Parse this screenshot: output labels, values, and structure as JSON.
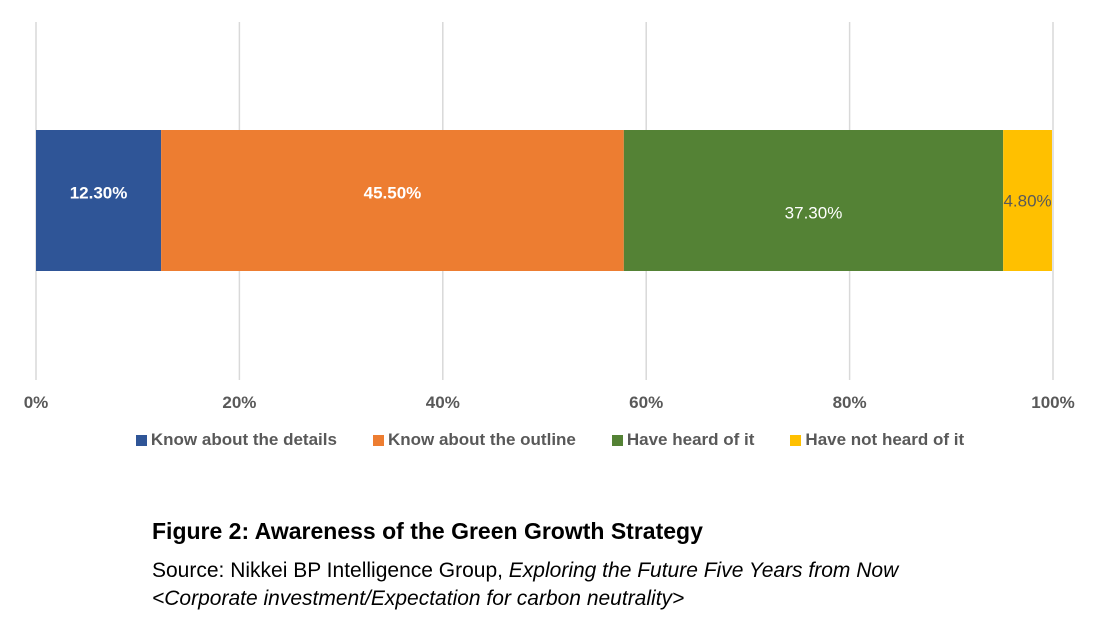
{
  "chart_data": {
    "type": "bar",
    "orientation": "horizontal",
    "stacked": true,
    "xlim": [
      0,
      100
    ],
    "x_ticks": [
      "0%",
      "20%",
      "40%",
      "60%",
      "80%",
      "100%"
    ],
    "grid": true,
    "legend_position": "bottom",
    "series": [
      {
        "name": "Know about the details",
        "value": 12.3,
        "label": "12.30%",
        "color": "#2F5597",
        "label_color": "#ffffff",
        "label_bold": true
      },
      {
        "name": "Know about the outline",
        "value": 45.5,
        "label": "45.50%",
        "color": "#ED7D31",
        "label_color": "#ffffff",
        "label_bold": true
      },
      {
        "name": "Have heard of it",
        "value": 37.3,
        "label": "37.30%",
        "color": "#548235",
        "label_color": "#ffffff",
        "label_bold": false
      },
      {
        "name": "Have not heard of it",
        "value": 4.8,
        "label": "4.80%",
        "color": "#FFC000",
        "label_color": "#595959",
        "label_bold": false
      }
    ]
  },
  "caption": {
    "title": "Figure 2: Awareness of the Green Growth Strategy",
    "source_prefix": "Source: Nikkei BP Intelligence Group, ",
    "source_italic_1": "Exploring the Future Five Years from Now",
    "source_italic_2": "<Corporate investment/Expectation for carbon neutrality>"
  }
}
